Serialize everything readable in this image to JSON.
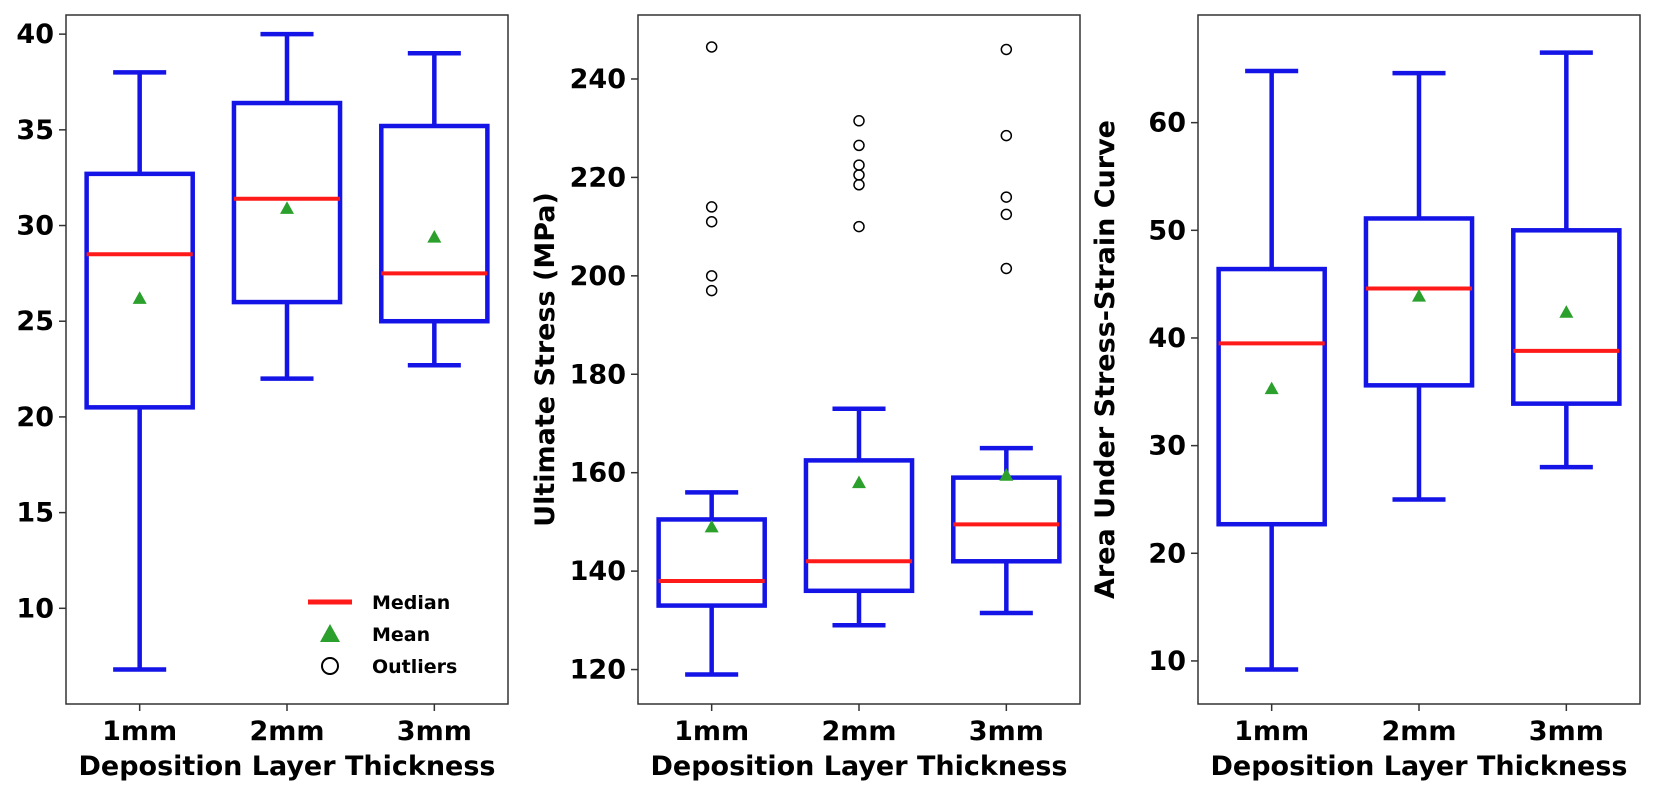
{
  "chart_data": [
    {
      "type": "box",
      "title": "",
      "xlabel": "Deposition Layer Thickness",
      "ylabel": "",
      "categories": [
        "1mm",
        "2mm",
        "3mm"
      ],
      "ylim": [
        5,
        41
      ],
      "yticks": [
        10,
        15,
        20,
        25,
        30,
        35,
        40
      ],
      "boxes": [
        {
          "whisker_low": 6.8,
          "q1": 20.5,
          "median": 28.5,
          "q3": 32.7,
          "whisker_high": 38.0,
          "mean": 26.2,
          "outliers": []
        },
        {
          "whisker_low": 22.0,
          "q1": 26.0,
          "median": 31.4,
          "q3": 36.4,
          "whisker_high": 40.0,
          "mean": 30.9,
          "outliers": []
        },
        {
          "whisker_low": 22.7,
          "q1": 25.0,
          "median": 27.5,
          "q3": 35.2,
          "whisker_high": 39.0,
          "mean": 29.4,
          "outliers": []
        }
      ],
      "legend": {
        "position": "bottom-right",
        "entries": [
          {
            "kind": "median",
            "label": "Median"
          },
          {
            "kind": "mean",
            "label": "Mean"
          },
          {
            "kind": "outliers",
            "label": "Outliers"
          }
        ]
      }
    },
    {
      "type": "box",
      "title": "",
      "xlabel": "Deposition Layer Thickness",
      "ylabel": "Ultimate Stress (MPa)",
      "categories": [
        "1mm",
        "2mm",
        "3mm"
      ],
      "ylim": [
        113,
        253
      ],
      "yticks": [
        120,
        140,
        160,
        180,
        200,
        220,
        240
      ],
      "boxes": [
        {
          "whisker_low": 119,
          "q1": 133,
          "median": 138,
          "q3": 150.5,
          "whisker_high": 156,
          "mean": 149,
          "outliers": [
            197,
            200,
            211,
            214,
            246.5
          ]
        },
        {
          "whisker_low": 129,
          "q1": 136,
          "median": 142,
          "q3": 162.5,
          "whisker_high": 173,
          "mean": 158,
          "outliers": [
            210,
            218.5,
            220.5,
            222.5,
            226.5,
            231.5
          ]
        },
        {
          "whisker_low": 131.5,
          "q1": 142,
          "median": 149.5,
          "q3": 159,
          "whisker_high": 165,
          "mean": 159.5,
          "outliers": [
            201.5,
            212.5,
            216,
            228.5,
            246
          ]
        }
      ]
    },
    {
      "type": "box",
      "title": "",
      "xlabel": "Deposition Layer Thickness",
      "ylabel": "Area Under Stress-Strain Curve",
      "categories": [
        "1mm",
        "2mm",
        "3mm"
      ],
      "ylim": [
        6,
        70
      ],
      "yticks": [
        10,
        20,
        30,
        40,
        50,
        60
      ],
      "boxes": [
        {
          "whisker_low": 9.2,
          "q1": 22.7,
          "median": 39.5,
          "q3": 46.4,
          "whisker_high": 64.8,
          "mean": 35.3,
          "outliers": []
        },
        {
          "whisker_low": 25.0,
          "q1": 35.6,
          "median": 44.6,
          "q3": 51.1,
          "whisker_high": 64.6,
          "mean": 43.9,
          "outliers": []
        },
        {
          "whisker_low": 28.0,
          "q1": 33.9,
          "median": 38.8,
          "q3": 50.0,
          "whisker_high": 66.5,
          "mean": 42.4,
          "outliers": []
        }
      ]
    }
  ],
  "colors": {
    "box": "#1414e6",
    "median": "#ff1a1a",
    "mean": "#2ca02c",
    "outlier": "#000000",
    "axes": "#333333"
  }
}
